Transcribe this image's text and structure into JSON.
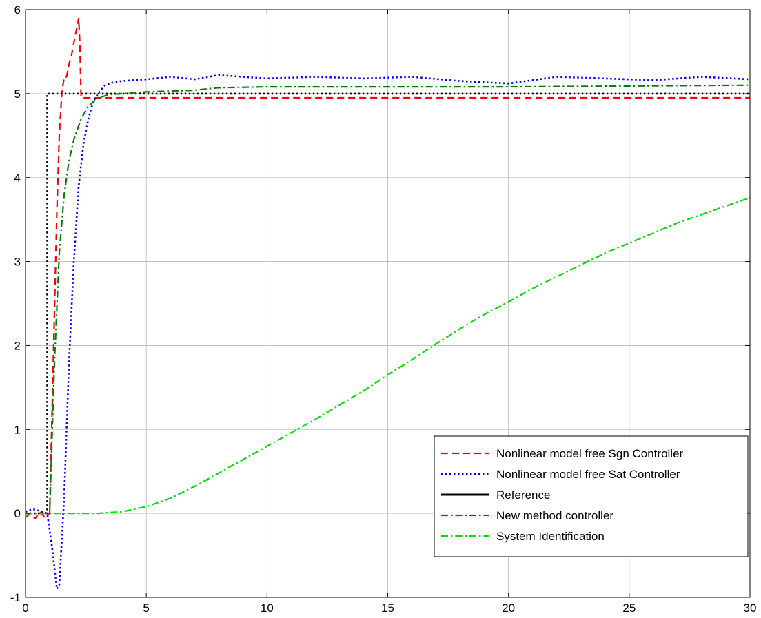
{
  "chart_data": {
    "type": "line",
    "title": "",
    "xlabel": "",
    "ylabel": "",
    "xlim": [
      0,
      30
    ],
    "ylim": [
      -1,
      6
    ],
    "xticks": [
      0,
      5,
      10,
      15,
      20,
      25,
      30
    ],
    "yticks": [
      -1,
      0,
      1,
      2,
      3,
      4,
      5,
      6
    ],
    "xtick_labels": [
      "0",
      "5",
      "10",
      "15",
      "20",
      "25",
      "30"
    ],
    "ytick_labels": [
      "-1",
      "0",
      "1",
      "2",
      "3",
      "4",
      "5",
      "6"
    ],
    "grid": true,
    "legend_position": "bottom-right",
    "series": [
      {
        "name": "Nonlinear model free Sgn Controller",
        "color": "#ff0000",
        "style": "dashed",
        "x": [
          0,
          0.2,
          0.4,
          0.6,
          0.8,
          1.0,
          1.1,
          1.2,
          1.3,
          1.4,
          1.5,
          1.6,
          1.7,
          1.8,
          1.9,
          2.0,
          2.1,
          2.2,
          2.25,
          2.3,
          3,
          4,
          5,
          6,
          8,
          10,
          12,
          14,
          16,
          18,
          20,
          22,
          24,
          26,
          28,
          30
        ],
        "y": [
          -0.05,
          0.0,
          -0.06,
          0.02,
          -0.05,
          0.0,
          1.2,
          2.4,
          3.6,
          4.5,
          5.0,
          5.2,
          5.2,
          5.35,
          5.45,
          5.6,
          5.75,
          5.9,
          5.6,
          4.95,
          4.95,
          4.95,
          4.95,
          4.95,
          4.95,
          4.95,
          4.95,
          4.95,
          4.95,
          4.95,
          4.95,
          4.95,
          4.95,
          4.95,
          4.95,
          4.95
        ]
      },
      {
        "name": "Nonlinear model free Sat Controller",
        "color": "#0000ff",
        "style": "dotted",
        "x": [
          0,
          0.3,
          0.6,
          0.9,
          1.1,
          1.3,
          1.4,
          1.6,
          1.8,
          2.0,
          2.2,
          2.4,
          2.6,
          2.8,
          3.0,
          3.3,
          3.6,
          4,
          5,
          6,
          7,
          8,
          9,
          10,
          12,
          14,
          16,
          18,
          20,
          22,
          24,
          26,
          28,
          30
        ],
        "y": [
          0.02,
          0.05,
          0.03,
          0.0,
          -0.4,
          -0.9,
          -0.85,
          0.2,
          1.8,
          3.0,
          3.9,
          4.4,
          4.7,
          4.9,
          5.0,
          5.1,
          5.13,
          5.15,
          5.17,
          5.2,
          5.17,
          5.22,
          5.2,
          5.18,
          5.2,
          5.18,
          5.2,
          5.15,
          5.12,
          5.2,
          5.18,
          5.16,
          5.2,
          5.17
        ]
      },
      {
        "name": "Reference",
        "color": "#000000",
        "style": "dotted",
        "x": [
          0,
          0.9,
          0.9,
          30
        ],
        "y": [
          0,
          0,
          5,
          5
        ]
      },
      {
        "name": "New method controller",
        "color": "#008000",
        "style": "dashdot",
        "x": [
          0,
          1.0,
          1.2,
          1.4,
          1.6,
          1.8,
          2.0,
          2.3,
          2.6,
          3.0,
          3.5,
          4,
          5,
          6,
          7,
          8,
          10,
          15,
          20,
          25,
          30
        ],
        "y": [
          0,
          0,
          1.8,
          3.1,
          3.8,
          4.2,
          4.45,
          4.7,
          4.85,
          4.95,
          4.99,
          5.0,
          5.02,
          5.03,
          5.04,
          5.07,
          5.08,
          5.08,
          5.08,
          5.09,
          5.1
        ]
      },
      {
        "name": "System Identification",
        "color": "#00e000",
        "style": "dashdot",
        "x": [
          0,
          1,
          2,
          3,
          4,
          5,
          6,
          7,
          8,
          9,
          10,
          11,
          12,
          13,
          14,
          15,
          16,
          17,
          18,
          19,
          20,
          21,
          22,
          23,
          24,
          25,
          26,
          27,
          28,
          29,
          30
        ],
        "y": [
          0,
          0,
          0,
          0,
          0.02,
          0.08,
          0.18,
          0.32,
          0.48,
          0.64,
          0.8,
          0.96,
          1.12,
          1.29,
          1.46,
          1.65,
          1.83,
          2.02,
          2.2,
          2.37,
          2.52,
          2.68,
          2.82,
          2.96,
          3.1,
          3.22,
          3.34,
          3.46,
          3.56,
          3.66,
          3.76
        ]
      }
    ]
  }
}
